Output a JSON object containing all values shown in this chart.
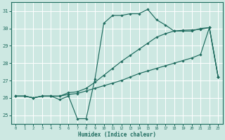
{
  "xlabel": "Humidex (Indice chaleur)",
  "background_color": "#cde8e2",
  "grid_color": "#b0d8d0",
  "line_color": "#1e6b5e",
  "hours": [
    0,
    1,
    2,
    3,
    4,
    5,
    6,
    7,
    8,
    9,
    10,
    11,
    12,
    13,
    14,
    15,
    16,
    17,
    18,
    19,
    20,
    21,
    22,
    23
  ],
  "y_main": [
    26.1,
    26.1,
    26.0,
    26.1,
    26.1,
    25.9,
    26.1,
    24.8,
    24.8,
    27.1,
    30.3,
    30.75,
    30.75,
    30.85,
    30.85,
    31.1,
    30.5,
    30.2,
    29.85,
    29.85,
    29.85,
    30.0,
    30.05,
    27.2
  ],
  "y_upper": [
    26.1,
    26.1,
    26.0,
    26.1,
    26.1,
    26.1,
    26.3,
    26.35,
    26.55,
    26.9,
    27.3,
    27.7,
    28.1,
    28.45,
    28.8,
    29.15,
    29.5,
    29.7,
    29.85,
    29.9,
    29.92,
    29.95,
    30.05,
    27.2
  ],
  "y_lower": [
    26.1,
    26.1,
    26.0,
    26.1,
    26.1,
    26.1,
    26.2,
    26.25,
    26.4,
    26.55,
    26.7,
    26.85,
    27.0,
    27.2,
    27.4,
    27.55,
    27.7,
    27.85,
    28.0,
    28.15,
    28.3,
    28.5,
    30.05,
    27.2
  ],
  "ylim": [
    24.5,
    31.5
  ],
  "yticks": [
    25,
    26,
    27,
    28,
    29,
    30,
    31
  ],
  "xlim": [
    -0.5,
    23.5
  ],
  "xticks": [
    0,
    1,
    2,
    3,
    4,
    5,
    6,
    7,
    8,
    9,
    10,
    11,
    12,
    13,
    14,
    15,
    16,
    17,
    18,
    19,
    20,
    21,
    22,
    23
  ]
}
